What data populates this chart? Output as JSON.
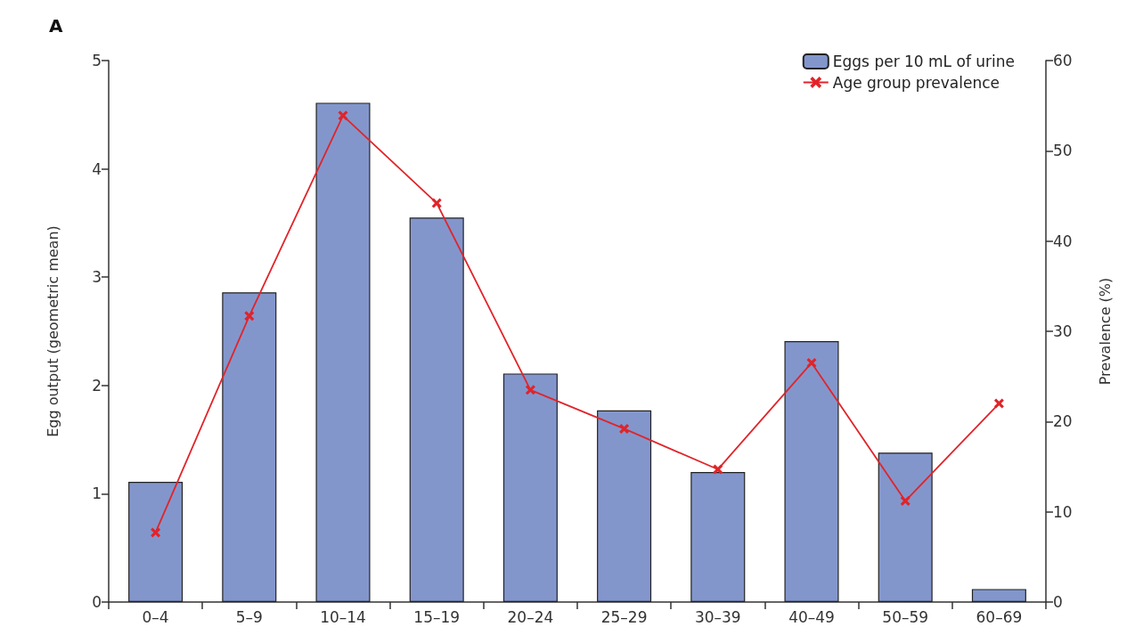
{
  "chart_data": {
    "type": "bar",
    "title": "A",
    "ylabel": "Egg output (geometric mean)",
    "y2label": "Prevalence (%)",
    "categories": [
      "0–4",
      "5–9",
      "10–14",
      "15–19",
      "20–24",
      "25–29",
      "30–39",
      "40–49",
      "50–59",
      "60–69"
    ],
    "series": [
      {
        "name": "Eggs per 10 mL of urine",
        "color": "#8396cc",
        "values": [
          1.11,
          2.86,
          4.61,
          3.55,
          2.11,
          1.77,
          1.2,
          2.41,
          1.38,
          0.12
        ]
      },
      {
        "name": "Age group prevalence",
        "type": "line",
        "axis": "y2",
        "color": "#e0242a",
        "marker": "cross",
        "line_style": "solid",
        "values": [
          7.7,
          31.7,
          53.9,
          44.2,
          23.5,
          19.2,
          14.7,
          26.5,
          11.2,
          22.0
        ]
      }
    ],
    "ylim": [
      0,
      5
    ],
    "yticks": [
      0,
      1,
      2,
      3,
      4,
      5
    ],
    "y2lim": [
      0,
      60
    ],
    "y2ticks": [
      0,
      10,
      20,
      30,
      40,
      50,
      60
    ],
    "grid": false,
    "legend": "top right"
  }
}
